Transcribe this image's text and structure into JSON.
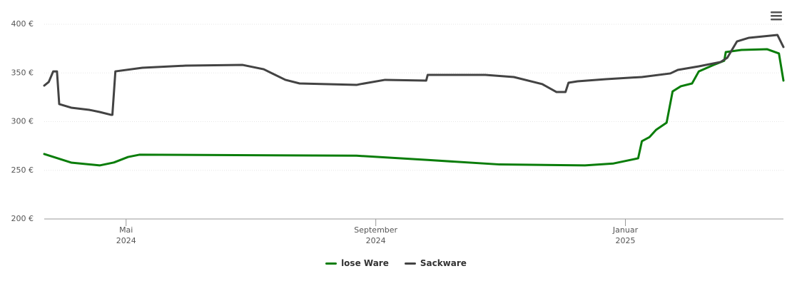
{
  "chart_data": {
    "type": "line",
    "xlim": [
      2024.224,
      2025.211
    ],
    "xticks": [
      {
        "value": 2024.3333,
        "label": "Mai\n2024"
      },
      {
        "value": 2024.6667,
        "label": "September\n2024"
      },
      {
        "value": 2025.0,
        "label": "Januar\n2025"
      }
    ],
    "ylim": [
      200,
      400
    ],
    "yticks": [
      {
        "value": 200,
        "label": "200 €"
      },
      {
        "value": 250,
        "label": "250 €"
      },
      {
        "value": 300,
        "label": "300 €"
      },
      {
        "value": 350,
        "label": "350 €"
      },
      {
        "value": 400,
        "label": "400 €"
      }
    ],
    "grid": true,
    "legend": "bottom",
    "series": [
      {
        "name": "lose Ware",
        "color": "#0a7d0a",
        "x": [
          2024.224,
          2024.26,
          2024.298,
          2024.317,
          2024.336,
          2024.351,
          2024.641,
          2024.736,
          2024.832,
          2024.946,
          2024.984,
          2025.017,
          2025.022,
          2025.032,
          2025.041,
          2025.055,
          2025.063,
          2025.074,
          2025.089,
          2025.098,
          2025.117,
          2025.132,
          2025.134,
          2025.155,
          2025.189,
          2025.205,
          2025.211
        ],
        "values": [
          266.7,
          257.9,
          255,
          258,
          263.7,
          266,
          265,
          260.6,
          256,
          255,
          257,
          262.3,
          279.9,
          284,
          291.6,
          298.9,
          331,
          336.3,
          339.2,
          351.6,
          358,
          362.6,
          371.4,
          373.6,
          374.4,
          370,
          342.1
        ]
      },
      {
        "name": "Sackware",
        "color": "#434343",
        "x": [
          2024.224,
          2024.23,
          2024.236,
          2024.241,
          2024.244,
          2024.26,
          2024.284,
          2024.298,
          2024.313,
          2024.315,
          2024.319,
          2024.355,
          2024.413,
          2024.489,
          2024.517,
          2024.546,
          2024.565,
          2024.641,
          2024.646,
          2024.679,
          2024.734,
          2024.736,
          2024.813,
          2024.851,
          2024.889,
          2024.908,
          2024.92,
          2024.924,
          2024.936,
          2024.974,
          2025.022,
          2025.06,
          2025.07,
          2025.098,
          2025.127,
          2025.136,
          2025.149,
          2025.165,
          2025.203,
          2025.211
        ],
        "values": [
          337,
          340.7,
          351.6,
          351.6,
          318,
          314.3,
          312.1,
          309.9,
          307,
          307,
          351.6,
          355.3,
          357.5,
          358.2,
          353.8,
          342.9,
          339.2,
          337.7,
          338.5,
          342.9,
          342.1,
          348,
          348,
          345.8,
          338.5,
          330.4,
          330.4,
          339.9,
          341.4,
          343.6,
          345.8,
          349.5,
          353.1,
          356.8,
          361.2,
          365.6,
          382.4,
          386.1,
          389,
          376.6
        ]
      }
    ]
  }
}
